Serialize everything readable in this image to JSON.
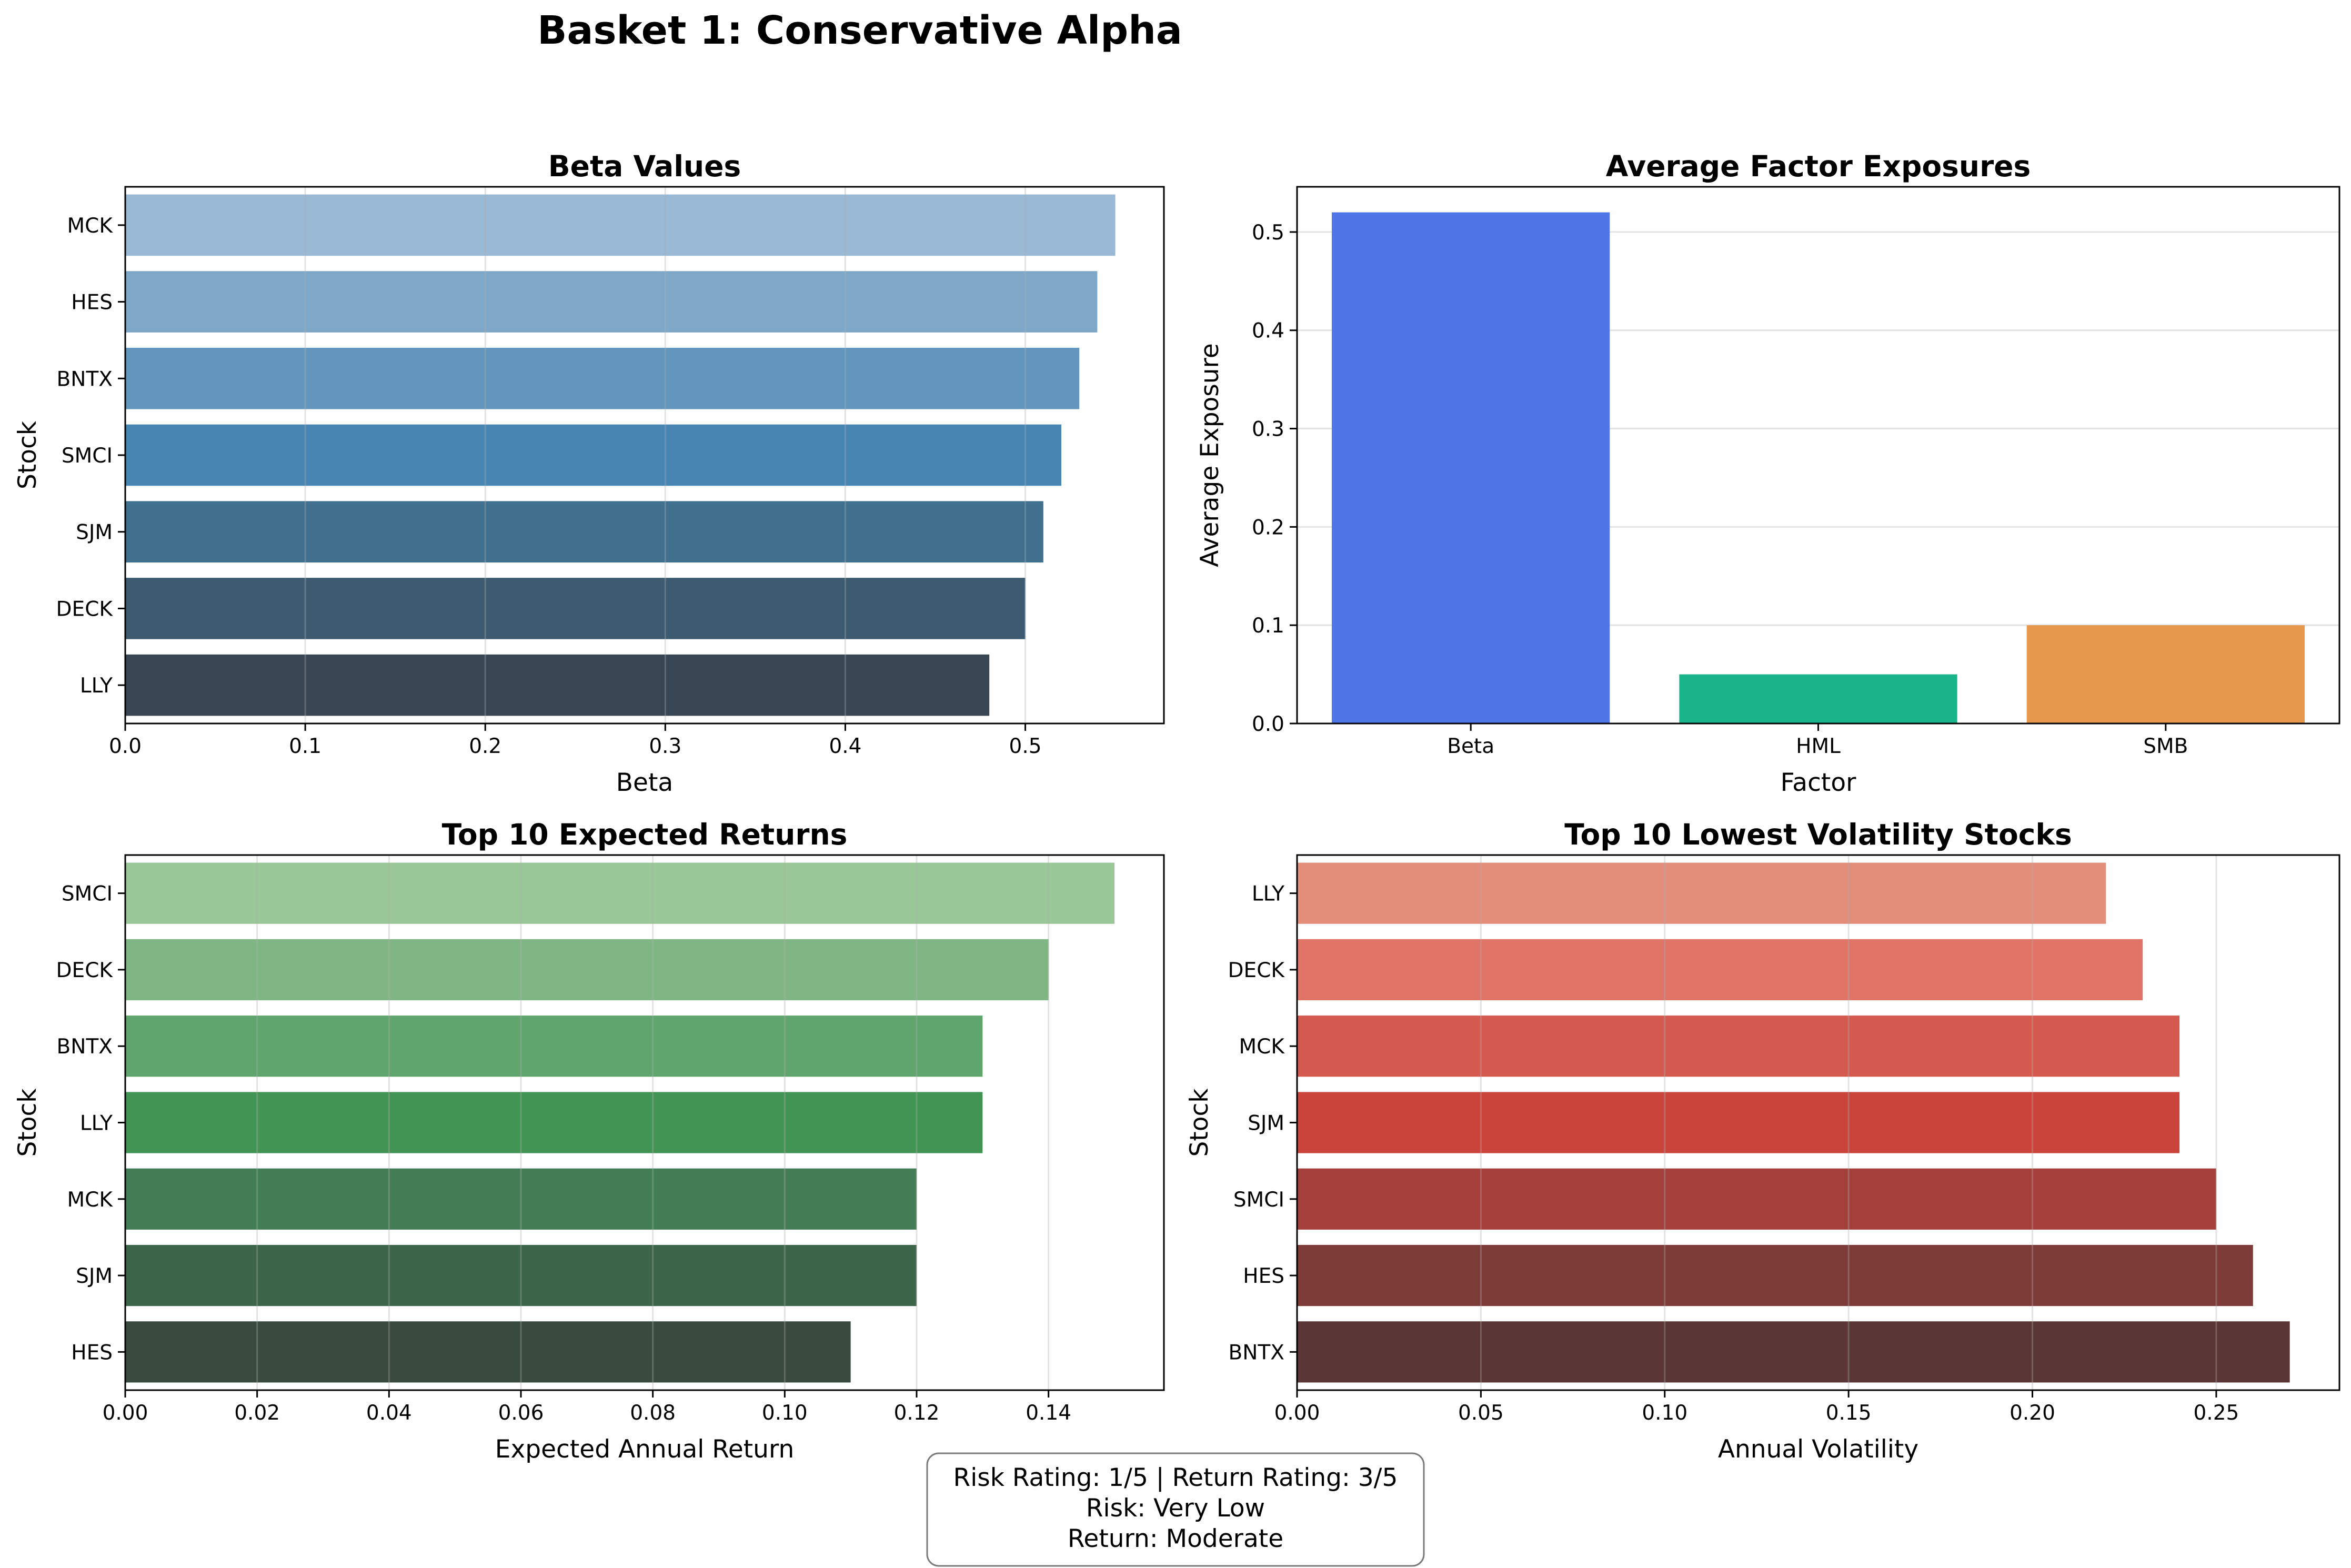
{
  "title": "Basket 1: Conservative Alpha",
  "info_box": {
    "lines": [
      "Risk Rating: 1/5 | Return Rating: 3/5",
      "Risk: Very Low",
      "Return: Moderate"
    ]
  },
  "chart_data": [
    {
      "type": "bar",
      "orientation": "horizontal",
      "title": "Beta Values",
      "xlabel": "Beta",
      "ylabel": "Stock",
      "categories": [
        "MCK",
        "HES",
        "BNTX",
        "SMCI",
        "SJM",
        "DECK",
        "LLY"
      ],
      "values": [
        0.55,
        0.54,
        0.53,
        0.52,
        0.51,
        0.5,
        0.48
      ],
      "colors": [
        "#9ab9d4",
        "#7fa8c8",
        "#6296bc",
        "#4785b2",
        "#41708f",
        "#3d5b70",
        "#384552"
      ],
      "xlim": [
        0,
        0.577
      ],
      "xticks": [
        "0.0",
        "0.1",
        "0.2",
        "0.3",
        "0.4",
        "0.5"
      ],
      "xtick_values": [
        0,
        0.1,
        0.2,
        0.3,
        0.4,
        0.5
      ],
      "grid": "x"
    },
    {
      "type": "bar",
      "orientation": "vertical",
      "title": "Average Factor Exposures",
      "xlabel": "Factor",
      "ylabel": "Average Exposure",
      "categories": [
        "Beta",
        "HML",
        "SMB"
      ],
      "values": [
        0.52,
        0.05,
        0.1
      ],
      "colors": [
        "#4e76e7",
        "#19b48a",
        "#e6984c"
      ],
      "ylim": [
        0,
        0.546
      ],
      "yticks": [
        "0.0",
        "0.1",
        "0.2",
        "0.3",
        "0.4",
        "0.5"
      ],
      "ytick_values": [
        0,
        0.1,
        0.2,
        0.3,
        0.4,
        0.5
      ],
      "grid": "y"
    },
    {
      "type": "bar",
      "orientation": "horizontal",
      "title": "Top 10 Expected Returns",
      "xlabel": "Expected Annual Return",
      "ylabel": "Stock",
      "categories": [
        "SMCI",
        "DECK",
        "BNTX",
        "LLY",
        "MCK",
        "SJM",
        "HES"
      ],
      "values": [
        0.15,
        0.14,
        0.13,
        0.13,
        0.12,
        0.12,
        0.11
      ],
      "colors": [
        "#99c798",
        "#7fb684",
        "#60a56d",
        "#429455",
        "#427d55",
        "#3c6549",
        "#384b3e"
      ],
      "xlim": [
        0,
        0.1575
      ],
      "xticks": [
        "0.00",
        "0.02",
        "0.04",
        "0.06",
        "0.08",
        "0.10",
        "0.12",
        "0.14"
      ],
      "xtick_values": [
        0,
        0.02,
        0.04,
        0.06,
        0.08,
        0.1,
        0.12,
        0.14
      ],
      "grid": "x"
    },
    {
      "type": "bar",
      "orientation": "horizontal",
      "title": "Top 10 Lowest Volatility Stocks",
      "xlabel": "Annual Volatility",
      "ylabel": "Stock",
      "categories": [
        "LLY",
        "DECK",
        "MCK",
        "SJM",
        "SMCI",
        "HES",
        "BNTX"
      ],
      "values": [
        0.22,
        0.23,
        0.24,
        0.24,
        0.25,
        0.26,
        0.27
      ],
      "colors": [
        "#e38e7a",
        "#df7467",
        "#d45a50",
        "#cb443c",
        "#a43f3c",
        "#7d3b38",
        "#5a3636"
      ],
      "xlim": [
        0,
        0.2835
      ],
      "xticks": [
        "0.00",
        "0.05",
        "0.10",
        "0.15",
        "0.20",
        "0.25"
      ],
      "xtick_values": [
        0,
        0.05,
        0.1,
        0.15,
        0.2,
        0.25
      ],
      "grid": "x"
    }
  ]
}
